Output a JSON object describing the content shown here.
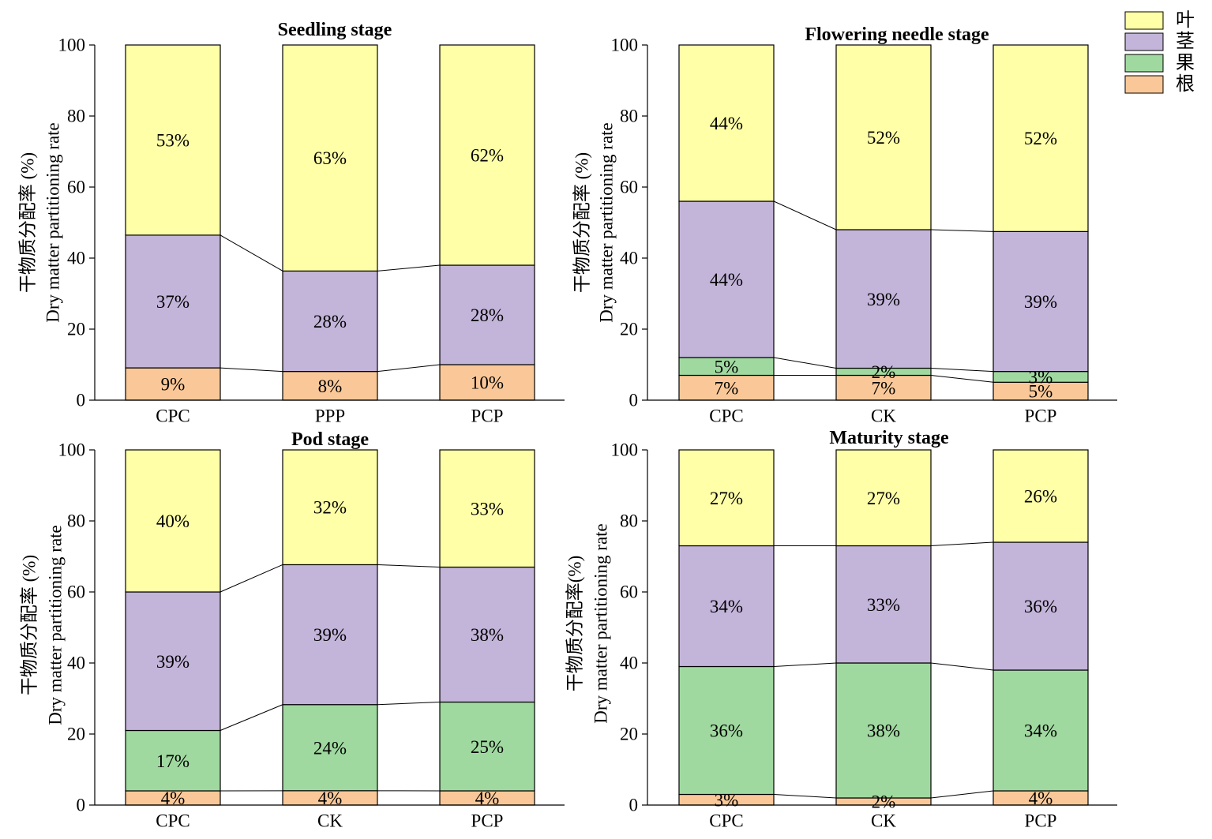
{
  "legend": {
    "items": [
      {
        "label": "叶",
        "color": "#FFFFA8"
      },
      {
        "label": "茎",
        "color": "#C3B4D9"
      },
      {
        "label": "果",
        "color": "#A0D9A0"
      },
      {
        "label": "根",
        "color": "#FAC898"
      }
    ]
  },
  "chart_data": [
    {
      "type": "bar",
      "stacking": "percent",
      "connector_lines": true,
      "title": "Seedling stage",
      "ylabel": [
        "干物质分配率 (%)",
        "Dry matter partitioning rate"
      ],
      "ylim": [
        0,
        100
      ],
      "yticks": [
        0,
        20,
        40,
        60,
        80,
        100
      ],
      "value_unit": "%",
      "categories": [
        "CPC",
        "PPP",
        "PCP"
      ],
      "series": [
        {
          "name": "根",
          "values": [
            9,
            8,
            10
          ]
        },
        {
          "name": "茎",
          "values": [
            37,
            28,
            28
          ]
        },
        {
          "name": "叶",
          "values": [
            53,
            63,
            62
          ]
        }
      ]
    },
    {
      "type": "bar",
      "stacking": "percent",
      "connector_lines": true,
      "title": "Flowering needle stage",
      "ylabel": [
        "干物质分配率 (%)",
        "Dry matter partitioning rate"
      ],
      "ylim": [
        0,
        100
      ],
      "yticks": [
        0,
        20,
        40,
        60,
        80,
        100
      ],
      "value_unit": "%",
      "categories": [
        "CPC",
        "CK",
        "PCP"
      ],
      "series": [
        {
          "name": "根",
          "values": [
            7,
            7,
            5
          ]
        },
        {
          "name": "果",
          "values": [
            5,
            2,
            3
          ]
        },
        {
          "name": "茎",
          "values": [
            44,
            39,
            39
          ]
        },
        {
          "name": "叶",
          "values": [
            44,
            52,
            52
          ]
        }
      ]
    },
    {
      "type": "bar",
      "stacking": "percent",
      "connector_lines": true,
      "title": "Pod stage",
      "ylabel": [
        "干物质分配率 (%)",
        "Dry matter partitioning rate"
      ],
      "ylim": [
        0,
        100
      ],
      "yticks": [
        0,
        20,
        40,
        60,
        80,
        100
      ],
      "value_unit": "%",
      "categories": [
        "CPC",
        "CK",
        "PCP"
      ],
      "series": [
        {
          "name": "根",
          "values": [
            4,
            4,
            4
          ]
        },
        {
          "name": "果",
          "values": [
            17,
            24,
            25
          ]
        },
        {
          "name": "茎",
          "values": [
            39,
            39,
            38
          ]
        },
        {
          "name": "叶",
          "values": [
            40,
            32,
            33
          ]
        }
      ]
    },
    {
      "type": "bar",
      "stacking": "percent",
      "connector_lines": true,
      "title": "Maturity stage",
      "ylabel": [
        "干物质分配率(%)",
        "Dry matter partitioning rate"
      ],
      "ylim": [
        0,
        100
      ],
      "yticks": [
        0,
        20,
        40,
        60,
        80,
        100
      ],
      "value_unit": "%",
      "categories": [
        "CPC",
        "CK",
        "PCP"
      ],
      "series": [
        {
          "name": "根",
          "values": [
            3,
            2,
            4
          ]
        },
        {
          "name": "果",
          "values": [
            36,
            38,
            34
          ]
        },
        {
          "name": "茎",
          "values": [
            34,
            33,
            36
          ]
        },
        {
          "name": "叶",
          "values": [
            27,
            27,
            26
          ]
        }
      ]
    }
  ]
}
